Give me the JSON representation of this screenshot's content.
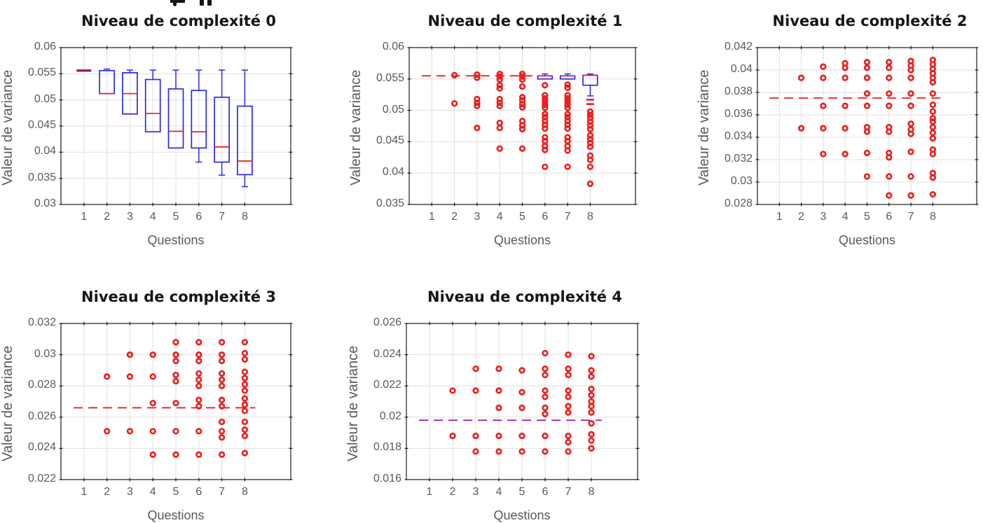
{
  "page": {
    "background": "#ffffff"
  },
  "colors": {
    "box_edge": "#2a2ae6",
    "median": "#ee1c1c",
    "outlier": "#ee1c1c",
    "collapsed_overlap": "#8e2160",
    "overlap_purple": "#9b169b",
    "grid": "#e0e0e0",
    "axis": "#1a1a1a",
    "tick_label": "#595959",
    "axis_label": "#595959",
    "title": "#161616"
  },
  "chart_data": [
    {
      "type": "boxplot",
      "title": "Niveau de complexité 0",
      "xlabel": "Questions",
      "ylabel": "Valeur de variance",
      "xlim": [
        0,
        10
      ],
      "ylim": [
        0.03,
        0.06
      ],
      "xticks": [
        1,
        2,
        3,
        4,
        5,
        6,
        7,
        8
      ],
      "xtick_labels": [
        "1",
        "2",
        "3",
        "4",
        "5",
        "6",
        "7",
        "8"
      ],
      "yticks": [
        0.03,
        0.035,
        0.04,
        0.045,
        0.05,
        0.055,
        0.06
      ],
      "ytick_labels": [
        "0.03",
        "0.035",
        "0.04",
        "0.045",
        "0.05",
        "0.055",
        "0.06"
      ],
      "grid": true,
      "box_width": 0.64,
      "boxes": [
        {
          "x": 1,
          "type": "collapsed",
          "median": 0.0556
        },
        {
          "x": 2,
          "q1": 0.0512,
          "q3": 0.0556,
          "median": 0.0512,
          "whisker_high": 0.0559,
          "whisker_low": null
        },
        {
          "x": 3,
          "q1": 0.0473,
          "q3": 0.0552,
          "median": 0.0512,
          "whisker_high": 0.0557,
          "whisker_low": null
        },
        {
          "x": 4,
          "q1": 0.0439,
          "q3": 0.0539,
          "median": 0.0474,
          "whisker_high": 0.0557,
          "whisker_low": null
        },
        {
          "x": 5,
          "q1": 0.0408,
          "q3": 0.0521,
          "median": 0.044,
          "whisker_high": 0.0557,
          "whisker_low": null
        },
        {
          "x": 6,
          "q1": 0.0408,
          "q3": 0.0518,
          "median": 0.0439,
          "whisker_high": 0.0557,
          "whisker_low": 0.0381
        },
        {
          "x": 7,
          "q1": 0.0381,
          "q3": 0.0505,
          "median": 0.041,
          "whisker_high": 0.0557,
          "whisker_low": 0.0356
        },
        {
          "x": 8,
          "q1": 0.0357,
          "q3": 0.0488,
          "median": 0.0383,
          "whisker_high": 0.0557,
          "whisker_low": 0.0334
        }
      ],
      "median_line": null,
      "outliers": [],
      "dash_markers": []
    },
    {
      "type": "boxplot",
      "title": "Niveau de complexité 1",
      "xlabel": "Questions",
      "ylabel": "Valeur de variance",
      "xlim": [
        0,
        10
      ],
      "ylim": [
        0.035,
        0.06
      ],
      "xticks": [
        1,
        2,
        3,
        4,
        5,
        6,
        7,
        8
      ],
      "xtick_labels": [
        "1",
        "2",
        "3",
        "4",
        "5",
        "6",
        "7",
        "8"
      ],
      "yticks": [
        0.035,
        0.04,
        0.045,
        0.05,
        0.055,
        0.06
      ],
      "ytick_labels": [
        "0.035",
        "0.04",
        "0.045",
        "0.05",
        "0.055",
        "0.06"
      ],
      "grid": true,
      "box_width": 0.64,
      "boxes": [
        {
          "x": 6,
          "q1": 0.055,
          "q3": 0.0555,
          "median": 0.0555,
          "whisker_high": 0.0558,
          "whisker_low": null
        },
        {
          "x": 7,
          "q1": 0.055,
          "q3": 0.0555,
          "median": 0.0555,
          "whisker_high": 0.0558,
          "whisker_low": null
        },
        {
          "x": 8,
          "q1": 0.054,
          "q3": 0.0556,
          "median": 0.0556,
          "whisker_high": 0.0558,
          "whisker_low": 0.0523
        }
      ],
      "median_line": {
        "y": 0.0555,
        "x_start": 0.55,
        "x_end": 5.45,
        "color": "median"
      },
      "outliers": [
        {
          "x": 2,
          "values": [
            0.0556,
            0.0511
          ]
        },
        {
          "x": 3,
          "values": [
            0.0557,
            0.0552,
            0.0518,
            0.0512,
            0.0507,
            0.0472
          ]
        },
        {
          "x": 4,
          "values": [
            0.0558,
            0.0554,
            0.0549,
            0.054,
            0.0535,
            0.0518,
            0.0512,
            0.0507,
            0.048,
            0.0472,
            0.0439
          ]
        },
        {
          "x": 5,
          "values": [
            0.0558,
            0.0554,
            0.0549,
            0.0538,
            0.0521,
            0.0516,
            0.051,
            0.0505,
            0.0483,
            0.0476,
            0.047,
            0.0439
          ]
        },
        {
          "x": 6,
          "values": [
            0.054,
            0.0524,
            0.0519,
            0.0514,
            0.0509,
            0.0504,
            0.0494,
            0.0489,
            0.0483,
            0.0477,
            0.0471,
            0.0457,
            0.0451,
            0.0443,
            0.0437,
            0.041
          ]
        },
        {
          "x": 7,
          "values": [
            0.0541,
            0.0536,
            0.0524,
            0.0519,
            0.0514,
            0.0509,
            0.0504,
            0.0494,
            0.0489,
            0.0483,
            0.0477,
            0.0471,
            0.0457,
            0.0451,
            0.0443,
            0.0436,
            0.041
          ]
        },
        {
          "x": 8,
          "values": [
            0.0498,
            0.0493,
            0.0488,
            0.0482,
            0.0476,
            0.047,
            0.046,
            0.0454,
            0.0448,
            0.0442,
            0.0428,
            0.0421,
            0.041,
            0.0383
          ]
        }
      ],
      "dash_markers": [
        {
          "x": 8,
          "values": [
            0.0517,
            0.051
          ]
        }
      ]
    },
    {
      "type": "boxplot",
      "title": "Niveau de complexité 2",
      "xlabel": "Questions",
      "ylabel": "Valeur de variance",
      "xlim": [
        0,
        10
      ],
      "ylim": [
        0.028,
        0.042
      ],
      "xticks": [
        1,
        2,
        3,
        4,
        5,
        6,
        7,
        8
      ],
      "xtick_labels": [
        "1",
        "2",
        "3",
        "4",
        "5",
        "6",
        "7",
        "8"
      ],
      "yticks": [
        0.028,
        0.03,
        0.032,
        0.034,
        0.036,
        0.038,
        0.04,
        0.042
      ],
      "ytick_labels": [
        "0.028",
        "0.03",
        "0.032",
        "0.034",
        "0.036",
        "0.038",
        "0.04",
        "0.042"
      ],
      "grid": true,
      "box_width": 0.64,
      "boxes": [],
      "median_line": {
        "y": 0.0375,
        "x_start": 0.55,
        "x_end": 8.45,
        "color": "median"
      },
      "outliers": [
        {
          "x": 2,
          "values": [
            0.0393,
            0.0348
          ]
        },
        {
          "x": 3,
          "values": [
            0.0403,
            0.0393,
            0.0368,
            0.0348,
            0.0325
          ]
        },
        {
          "x": 4,
          "values": [
            0.0406,
            0.0402,
            0.0393,
            0.0368,
            0.0348,
            0.0325
          ]
        },
        {
          "x": 5,
          "values": [
            0.0407,
            0.0402,
            0.0393,
            0.0379,
            0.0368,
            0.0349,
            0.0345,
            0.0326,
            0.0305
          ]
        },
        {
          "x": 6,
          "values": [
            0.0407,
            0.0402,
            0.0393,
            0.0379,
            0.0368,
            0.0349,
            0.0345,
            0.0326,
            0.0322,
            0.0305,
            0.0288
          ]
        },
        {
          "x": 7,
          "values": [
            0.0408,
            0.0404,
            0.04,
            0.0393,
            0.0379,
            0.0368,
            0.0352,
            0.0347,
            0.0343,
            0.0327,
            0.0305,
            0.0288
          ]
        },
        {
          "x": 8,
          "values": [
            0.0409,
            0.0405,
            0.0401,
            0.0397,
            0.0393,
            0.0389,
            0.0379,
            0.0369,
            0.0363,
            0.0357,
            0.0354,
            0.0349,
            0.0344,
            0.0339,
            0.0329,
            0.0325,
            0.0308,
            0.0304,
            0.0289
          ]
        }
      ],
      "dash_markers": []
    },
    {
      "type": "boxplot",
      "title": "Niveau de complexité 3",
      "xlabel": "Questions",
      "ylabel": "Valeur de variance",
      "xlim": [
        0,
        10
      ],
      "ylim": [
        0.022,
        0.032
      ],
      "xticks": [
        1,
        2,
        3,
        4,
        5,
        6,
        7,
        8
      ],
      "xtick_labels": [
        "1",
        "2",
        "3",
        "4",
        "5",
        "6",
        "7",
        "8"
      ],
      "yticks": [
        0.022,
        0.024,
        0.026,
        0.028,
        0.03,
        0.032
      ],
      "ytick_labels": [
        "0.022",
        "0.024",
        "0.026",
        "0.028",
        "0.03",
        "0.032"
      ],
      "grid": true,
      "box_width": 0.64,
      "boxes": [],
      "median_line": {
        "y": 0.0266,
        "x_start": 0.55,
        "x_end": 8.45,
        "color": "median"
      },
      "outliers": [
        {
          "x": 2,
          "values": [
            0.0286,
            0.0251
          ]
        },
        {
          "x": 3,
          "values": [
            0.03,
            0.0286,
            0.0251
          ]
        },
        {
          "x": 4,
          "values": [
            0.03,
            0.0286,
            0.0269,
            0.0251,
            0.0236
          ]
        },
        {
          "x": 5,
          "values": [
            0.0308,
            0.03,
            0.0296,
            0.0287,
            0.0283,
            0.0269,
            0.0251,
            0.0236
          ]
        },
        {
          "x": 6,
          "values": [
            0.0308,
            0.03,
            0.0296,
            0.0288,
            0.0284,
            0.028,
            0.0271,
            0.0267,
            0.0251,
            0.0236
          ]
        },
        {
          "x": 7,
          "values": [
            0.0308,
            0.03,
            0.0296,
            0.0288,
            0.0284,
            0.028,
            0.0271,
            0.0267,
            0.0257,
            0.0251,
            0.0247,
            0.0236
          ]
        },
        {
          "x": 8,
          "values": [
            0.0308,
            0.0301,
            0.0297,
            0.0289,
            0.0285,
            0.0281,
            0.0277,
            0.0272,
            0.0268,
            0.0264,
            0.0257,
            0.0252,
            0.0248,
            0.0237
          ]
        }
      ],
      "dash_markers": []
    },
    {
      "type": "boxplot",
      "title": "Niveau de complexité 4",
      "xlabel": "Questions",
      "ylabel": "Valeur de variance",
      "xlim": [
        0,
        10
      ],
      "ylim": [
        0.016,
        0.026
      ],
      "xticks": [
        1,
        2,
        3,
        4,
        5,
        6,
        7,
        8
      ],
      "xtick_labels": [
        "1",
        "2",
        "3",
        "4",
        "5",
        "6",
        "7",
        "8"
      ],
      "yticks": [
        0.016,
        0.018,
        0.02,
        0.022,
        0.024,
        0.026
      ],
      "ytick_labels": [
        "0.016",
        "0.018",
        "0.02",
        "0.022",
        "0.024",
        "0.026"
      ],
      "grid": true,
      "box_width": 0.64,
      "boxes": [],
      "median_line": {
        "y": 0.0198,
        "x_start": 0.55,
        "x_end": 8.45,
        "color": "overlap_purple"
      },
      "outliers": [
        {
          "x": 2,
          "values": [
            0.0217,
            0.0188
          ]
        },
        {
          "x": 3,
          "values": [
            0.0231,
            0.0217,
            0.0188,
            0.0178
          ]
        },
        {
          "x": 4,
          "values": [
            0.0231,
            0.0217,
            0.0206,
            0.0188,
            0.0178
          ]
        },
        {
          "x": 5,
          "values": [
            0.023,
            0.0216,
            0.0206,
            0.0188,
            0.0178
          ]
        },
        {
          "x": 6,
          "values": [
            0.0241,
            0.0231,
            0.0227,
            0.0217,
            0.0213,
            0.0206,
            0.0202,
            0.0188,
            0.0178
          ]
        },
        {
          "x": 7,
          "values": [
            0.024,
            0.0231,
            0.0227,
            0.0217,
            0.0213,
            0.0207,
            0.0203,
            0.0188,
            0.0184,
            0.0178
          ]
        },
        {
          "x": 8,
          "values": [
            0.0239,
            0.023,
            0.0226,
            0.0218,
            0.0214,
            0.021,
            0.0207,
            0.0203,
            0.0196,
            0.0189,
            0.0185,
            0.018
          ]
        }
      ],
      "dash_markers": []
    }
  ]
}
